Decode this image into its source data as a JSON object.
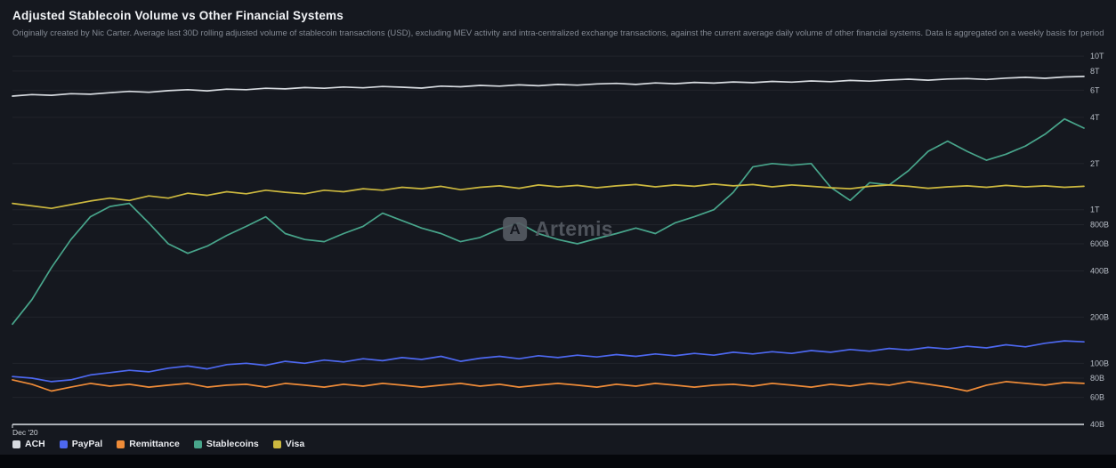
{
  "header": {
    "title": "Adjusted Stablecoin Volume vs Other Financial Systems",
    "subtitle": "Originally created by Nic Carter. Average last 30D rolling adjusted volume of stablecoin transactions (USD), excluding MEV activity and intra-centralized exchange transactions, against the current average daily volume of other financial systems. Data is aggregated on a weekly basis for periods 1Y ..."
  },
  "watermark": {
    "brand": "Artemis",
    "logo_glyph": "A"
  },
  "chart_data": {
    "type": "line",
    "title": "Adjusted Stablecoin Volume vs Other Financial Systems",
    "y_scale": "log",
    "unit": "average daily volume, billions USD",
    "grid": "horizontal",
    "legend_position": "bottom-left",
    "x_axis": {
      "first_label": "Dec '20",
      "note": "weekly points from Dec 2020 onward; only first tick label visible"
    },
    "y_axis": {
      "min": 40,
      "max": 11000,
      "ticks": [
        {
          "label": "10T",
          "value": 10000
        },
        {
          "label": "8T",
          "value": 8000
        },
        {
          "label": "6T",
          "value": 6000
        },
        {
          "label": "4T",
          "value": 4000
        },
        {
          "label": "2T",
          "value": 2000
        },
        {
          "label": "1T",
          "value": 1000
        },
        {
          "label": "800B",
          "value": 800
        },
        {
          "label": "600B",
          "value": 600
        },
        {
          "label": "400B",
          "value": 400
        },
        {
          "label": "200B",
          "value": 200
        },
        {
          "label": "100B",
          "value": 100
        },
        {
          "label": "80B",
          "value": 80
        },
        {
          "label": "60B",
          "value": 60
        },
        {
          "label": "40B",
          "value": 40
        }
      ]
    },
    "series": [
      {
        "name": "ACH",
        "color": "#d7dbe0",
        "values": [
          5500,
          5620,
          5560,
          5700,
          5650,
          5780,
          5900,
          5820,
          5960,
          6050,
          5950,
          6100,
          6050,
          6180,
          6120,
          6250,
          6180,
          6300,
          6220,
          6350,
          6280,
          6200,
          6380,
          6320,
          6450,
          6380,
          6500,
          6420,
          6550,
          6480,
          6600,
          6650,
          6550,
          6700,
          6620,
          6750,
          6680,
          6800,
          6720,
          6850,
          6780,
          6900,
          6820,
          6950,
          6880,
          7000,
          7080,
          6980,
          7100,
          7150,
          7050,
          7200,
          7280,
          7180,
          7320,
          7380
        ]
      },
      {
        "name": "PayPal",
        "color": "#4d68f0",
        "values": [
          82,
          80,
          76,
          78,
          84,
          87,
          90,
          88,
          93,
          96,
          92,
          98,
          100,
          97,
          103,
          100,
          105,
          102,
          107,
          104,
          109,
          106,
          111,
          103,
          108,
          111,
          107,
          112,
          109,
          113,
          110,
          114,
          111,
          115,
          112,
          116,
          113,
          118,
          115,
          119,
          116,
          121,
          118,
          123,
          120,
          125,
          122,
          127,
          124,
          129,
          126,
          132,
          128,
          135,
          140,
          138
        ]
      },
      {
        "name": "Remittance",
        "color": "#ee8b38",
        "values": [
          78,
          73,
          66,
          70,
          74,
          71,
          73,
          70,
          72,
          74,
          70,
          72,
          73,
          70,
          74,
          72,
          70,
          73,
          71,
          74,
          72,
          70,
          72,
          74,
          71,
          73,
          70,
          72,
          74,
          72,
          70,
          73,
          71,
          74,
          72,
          70,
          72,
          73,
          71,
          74,
          72,
          70,
          73,
          71,
          74,
          72,
          76,
          73,
          70,
          66,
          72,
          76,
          74,
          72,
          75,
          74
        ]
      },
      {
        "name": "Stablecoins",
        "color": "#48a58b",
        "values": [
          180,
          260,
          420,
          640,
          900,
          1050,
          1100,
          820,
          600,
          520,
          580,
          680,
          780,
          900,
          700,
          640,
          620,
          700,
          780,
          950,
          850,
          760,
          700,
          620,
          660,
          750,
          820,
          700,
          640,
          600,
          650,
          700,
          760,
          700,
          820,
          900,
          1000,
          1300,
          1900,
          2000,
          1950,
          2000,
          1400,
          1150,
          1500,
          1450,
          1800,
          2400,
          2800,
          2400,
          2100,
          2300,
          2600,
          3100,
          3900,
          3400
        ]
      },
      {
        "name": "Visa",
        "color": "#ccb83f",
        "values": [
          1100,
          1060,
          1020,
          1080,
          1140,
          1190,
          1150,
          1230,
          1190,
          1280,
          1240,
          1310,
          1270,
          1340,
          1300,
          1270,
          1340,
          1310,
          1370,
          1340,
          1400,
          1370,
          1420,
          1350,
          1400,
          1430,
          1380,
          1450,
          1410,
          1440,
          1390,
          1430,
          1460,
          1410,
          1450,
          1420,
          1470,
          1430,
          1460,
          1410,
          1450,
          1420,
          1390,
          1370,
          1420,
          1450,
          1420,
          1380,
          1410,
          1430,
          1400,
          1440,
          1410,
          1430,
          1400,
          1420
        ]
      }
    ]
  }
}
